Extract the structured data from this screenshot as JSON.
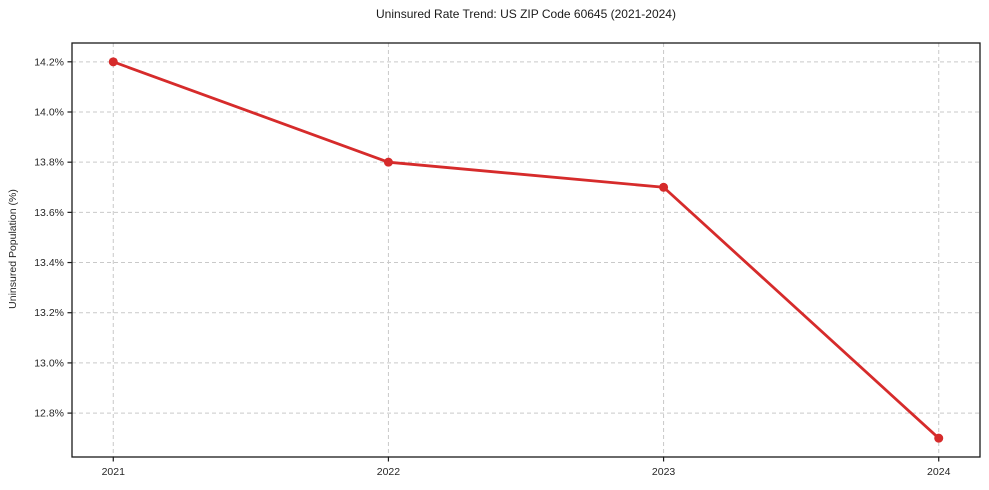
{
  "chart_data": {
    "type": "line",
    "title": "Uninsured Rate Trend: US ZIP Code 60645 (2021-2024)",
    "xlabel": "",
    "ylabel": "Uninsured Population (%)",
    "x": [
      2021,
      2022,
      2023,
      2024
    ],
    "y": [
      14.2,
      13.8,
      13.7,
      12.7
    ],
    "x_ticks": [
      2021,
      2022,
      2023,
      2024
    ],
    "x_tick_labels": [
      "2021",
      "2022",
      "2023",
      "2024"
    ],
    "y_ticks": [
      12.8,
      13.0,
      13.2,
      13.4,
      13.6,
      13.8,
      14.0,
      14.2
    ],
    "y_tick_labels": [
      "12.8%",
      "13.0%",
      "13.2%",
      "13.4%",
      "13.6%",
      "13.8%",
      "14.0%",
      "14.2%"
    ],
    "xlim": [
      2020.85,
      2024.15
    ],
    "ylim": [
      12.625,
      14.275
    ],
    "grid": true,
    "legend": false,
    "line_color": "#d62b2b",
    "grid_color": "#c9c9c9",
    "spine_color": "#1a1a1a",
    "background_color": "#ffffff"
  }
}
